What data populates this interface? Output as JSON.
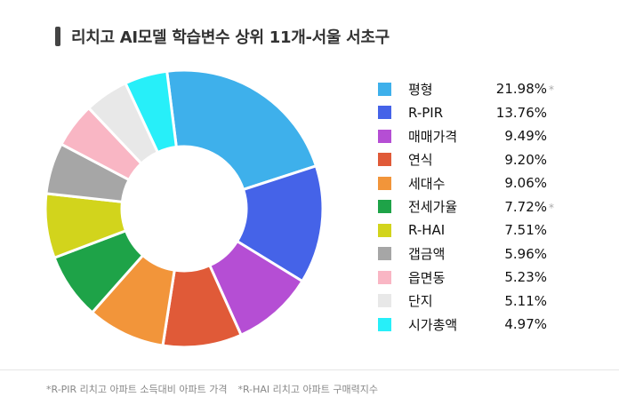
{
  "title": "리치고 AI모델 학습변수 상위 11개-서울 서초구",
  "footnotes": [
    "*R-PIR 리치고 아파트 소득대비 아파트 가격",
    "*R-HAI 리치고 아파트 구매력지수"
  ],
  "chart_data": {
    "type": "pie",
    "donut": true,
    "legend_position": "right",
    "categories": [
      "평형",
      "R-PIR",
      "매매가격",
      "연식",
      "세대수",
      "전세가율",
      "R-HAI",
      "갭금액",
      "읍면동",
      "단지",
      "시가총액"
    ],
    "values": [
      21.98,
      13.76,
      9.49,
      9.2,
      9.06,
      7.72,
      7.51,
      5.96,
      5.23,
      5.11,
      4.97
    ],
    "value_labels": [
      "21.98%",
      "13.76%",
      "9.49%",
      "9.20%",
      "9.06%",
      "7.72%",
      "7.51%",
      "5.96%",
      "5.23%",
      "5.11%",
      "4.97%"
    ],
    "label_marks": [
      "*",
      "",
      "",
      "",
      "",
      "*",
      "",
      "",
      "",
      "",
      ""
    ],
    "colors": [
      "#3eb0eb",
      "#4563e8",
      "#b54ed4",
      "#e05a38",
      "#f2953a",
      "#1ea348",
      "#d2d41c",
      "#a6a6a6",
      "#f9b6c4",
      "#e8e8e8",
      "#27eff9"
    ]
  }
}
